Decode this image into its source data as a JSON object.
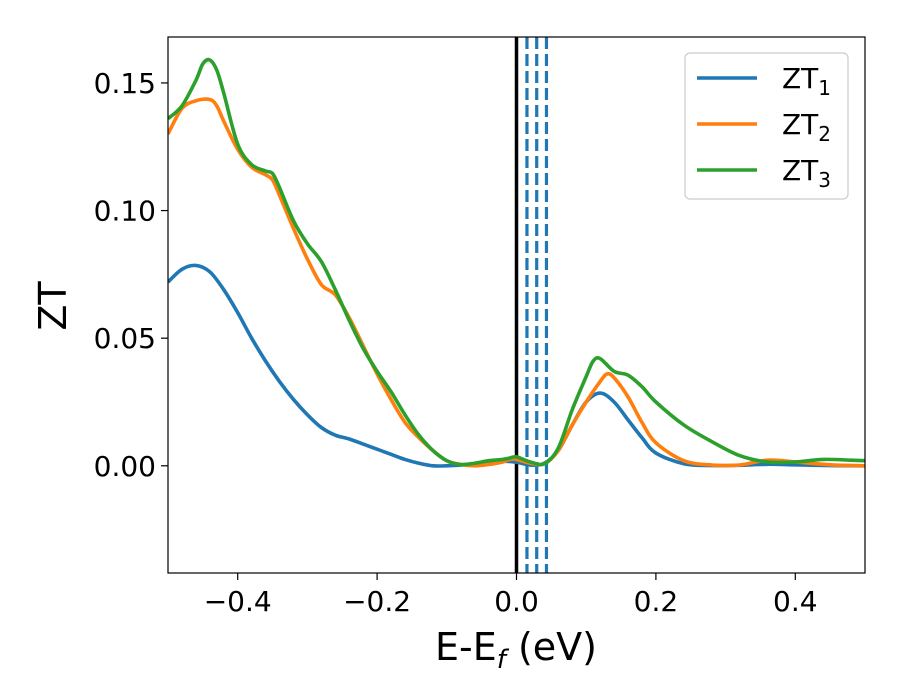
{
  "chart_data": {
    "type": "line",
    "title": "",
    "xlabel": "E-E",
    "xlabel_sub": "f",
    "xlabel_unit": " (eV)",
    "ylabel": "ZT",
    "xlim": [
      -0.5,
      0.5
    ],
    "ylim": [
      -0.042,
      0.168
    ],
    "x_ticks": [
      -0.4,
      -0.2,
      0.0,
      0.2,
      0.4
    ],
    "x_tick_labels": [
      "−0.4",
      "−0.2",
      "0.0",
      "0.2",
      "0.4"
    ],
    "y_ticks": [
      0.0,
      0.05,
      0.1,
      0.15
    ],
    "y_tick_labels": [
      "0.00",
      "0.05",
      "0.10",
      "0.15"
    ],
    "grid": false,
    "legend_position": "top-right",
    "vertical_lines": [
      {
        "x": 0.0,
        "style": "solid",
        "color": "#000000"
      },
      {
        "x": 0.015,
        "style": "dashed",
        "color": "#1f77b4"
      },
      {
        "x": 0.029,
        "style": "dashed",
        "color": "#1f77b4"
      },
      {
        "x": 0.043,
        "style": "dashed",
        "color": "#1f77b4"
      }
    ],
    "series": [
      {
        "name": "ZT",
        "sub": "1",
        "color": "#1f77b4",
        "x": [
          -0.5,
          -0.48,
          -0.46,
          -0.44,
          -0.42,
          -0.4,
          -0.38,
          -0.36,
          -0.34,
          -0.32,
          -0.3,
          -0.28,
          -0.26,
          -0.24,
          -0.22,
          -0.2,
          -0.18,
          -0.16,
          -0.14,
          -0.12,
          -0.1,
          -0.08,
          -0.06,
          -0.04,
          -0.02,
          0.0,
          0.02,
          0.04,
          0.06,
          0.08,
          0.1,
          0.12,
          0.14,
          0.16,
          0.18,
          0.2,
          0.24,
          0.28,
          0.32,
          0.36,
          0.4,
          0.45,
          0.5
        ],
        "y": [
          0.072,
          0.077,
          0.0785,
          0.076,
          0.069,
          0.06,
          0.05,
          0.041,
          0.033,
          0.026,
          0.02,
          0.015,
          0.012,
          0.0105,
          0.0085,
          0.0065,
          0.0045,
          0.0025,
          0.001,
          0.0,
          0.0,
          0.0003,
          0.0007,
          0.0012,
          0.0018,
          0.0014,
          0.0003,
          0.001,
          0.006,
          0.016,
          0.025,
          0.0285,
          0.025,
          0.018,
          0.011,
          0.005,
          0.0008,
          0.0001,
          0.0002,
          0.0006,
          0.0004,
          0.0001,
          0.0
        ]
      },
      {
        "name": "ZT",
        "sub": "2",
        "color": "#ff7f0e",
        "x": [
          -0.5,
          -0.48,
          -0.46,
          -0.44,
          -0.43,
          -0.42,
          -0.4,
          -0.38,
          -0.36,
          -0.35,
          -0.34,
          -0.32,
          -0.3,
          -0.28,
          -0.26,
          -0.24,
          -0.22,
          -0.2,
          -0.18,
          -0.16,
          -0.14,
          -0.12,
          -0.1,
          -0.08,
          -0.06,
          -0.04,
          -0.02,
          -0.01,
          0.0,
          0.02,
          0.04,
          0.06,
          0.08,
          0.1,
          0.12,
          0.13,
          0.14,
          0.16,
          0.18,
          0.2,
          0.24,
          0.28,
          0.32,
          0.36,
          0.4,
          0.45,
          0.5
        ],
        "y": [
          0.13,
          0.14,
          0.143,
          0.1435,
          0.141,
          0.135,
          0.124,
          0.117,
          0.114,
          0.112,
          0.106,
          0.093,
          0.081,
          0.071,
          0.067,
          0.058,
          0.047,
          0.036,
          0.026,
          0.017,
          0.011,
          0.006,
          0.002,
          0.0005,
          0.0,
          0.0005,
          0.0015,
          0.0025,
          0.0025,
          0.001,
          0.0008,
          0.006,
          0.016,
          0.025,
          0.033,
          0.036,
          0.0345,
          0.027,
          0.017,
          0.009,
          0.002,
          0.0003,
          0.0003,
          0.0022,
          0.0015,
          0.0004,
          0.0
        ]
      },
      {
        "name": "ZT",
        "sub": "3",
        "color": "#2ca02c",
        "x": [
          -0.5,
          -0.48,
          -0.46,
          -0.45,
          -0.44,
          -0.43,
          -0.42,
          -0.4,
          -0.38,
          -0.36,
          -0.35,
          -0.34,
          -0.32,
          -0.3,
          -0.28,
          -0.26,
          -0.24,
          -0.22,
          -0.2,
          -0.18,
          -0.16,
          -0.14,
          -0.12,
          -0.1,
          -0.08,
          -0.06,
          -0.04,
          -0.02,
          -0.01,
          0.0,
          0.02,
          0.04,
          0.06,
          0.08,
          0.1,
          0.11,
          0.12,
          0.14,
          0.16,
          0.18,
          0.2,
          0.24,
          0.28,
          0.32,
          0.36,
          0.4,
          0.44,
          0.48,
          0.5
        ],
        "y": [
          0.136,
          0.141,
          0.151,
          0.1575,
          0.159,
          0.155,
          0.146,
          0.126,
          0.118,
          0.1155,
          0.1145,
          0.109,
          0.096,
          0.087,
          0.08,
          0.069,
          0.057,
          0.046,
          0.037,
          0.029,
          0.02,
          0.012,
          0.006,
          0.002,
          0.0005,
          0.001,
          0.002,
          0.0025,
          0.003,
          0.0035,
          0.0015,
          0.0008,
          0.007,
          0.022,
          0.035,
          0.041,
          0.042,
          0.037,
          0.0355,
          0.031,
          0.025,
          0.016,
          0.0095,
          0.004,
          0.0015,
          0.0015,
          0.0025,
          0.0022,
          0.002
        ]
      }
    ]
  }
}
